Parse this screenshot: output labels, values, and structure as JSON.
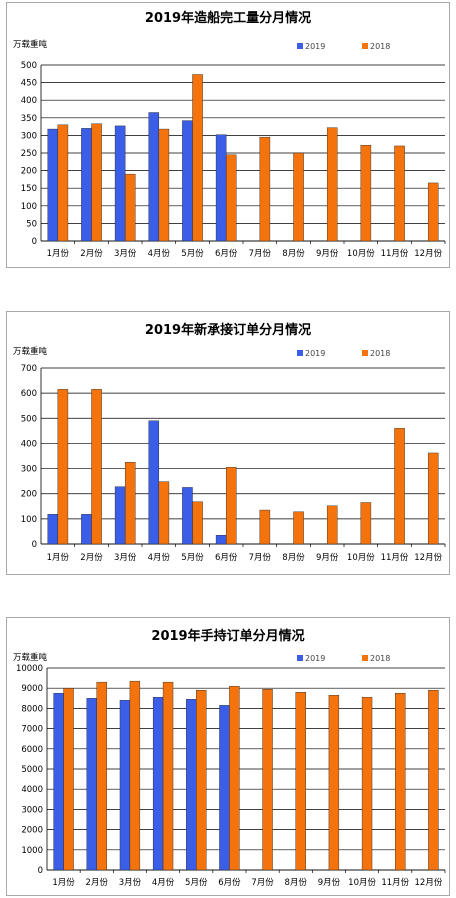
{
  "colors": {
    "s2019": "#3a5ee8",
    "s2018": "#f4730c",
    "grid": "#000000"
  },
  "chart_data": [
    {
      "type": "bar",
      "title": "2019年造船完工量分月情况",
      "ylabel": "万载重吨",
      "ylim": [
        0,
        500
      ],
      "yticks": [
        0,
        50,
        100,
        150,
        200,
        250,
        300,
        350,
        400,
        450,
        500
      ],
      "legend_position": "top-right",
      "categories": [
        "1月份",
        "2月份",
        "3月份",
        "4月份",
        "5月份",
        "6月份",
        "7月份",
        "8月份",
        "9月份",
        "10月份",
        "11月份",
        "12月份"
      ],
      "series": [
        {
          "name": "2019",
          "values": [
            318,
            320,
            327,
            365,
            342,
            302,
            null,
            null,
            null,
            null,
            null,
            null
          ]
        },
        {
          "name": "2018",
          "values": [
            330,
            333,
            190,
            318,
            473,
            245,
            295,
            250,
            322,
            272,
            270,
            165
          ]
        }
      ]
    },
    {
      "type": "bar",
      "title": "2019年新承接订单分月情况",
      "ylabel": "万载重吨",
      "ylim": [
        0,
        700
      ],
      "yticks": [
        0,
        100,
        200,
        300,
        400,
        500,
        600,
        700
      ],
      "legend_position": "top-right",
      "categories": [
        "1月份",
        "2月份",
        "3月份",
        "4月份",
        "5月份",
        "6月份",
        "7月份",
        "8月份",
        "9月份",
        "10月份",
        "11月份",
        "12月份"
      ],
      "series": [
        {
          "name": "2019",
          "values": [
            118,
            118,
            228,
            490,
            225,
            35,
            null,
            null,
            null,
            null,
            null,
            null
          ]
        },
        {
          "name": "2018",
          "values": [
            615,
            615,
            325,
            248,
            168,
            305,
            135,
            128,
            152,
            165,
            460,
            362
          ]
        }
      ]
    },
    {
      "type": "bar",
      "title": "2019年手持订单分月情况",
      "ylabel": "万载重吨",
      "ylim": [
        0,
        10000
      ],
      "yticks": [
        0,
        1000,
        2000,
        3000,
        4000,
        5000,
        6000,
        7000,
        8000,
        9000,
        10000
      ],
      "legend_position": "top-right",
      "categories": [
        "1月份",
        "2月份",
        "3月份",
        "4月份",
        "5月份",
        "6月份",
        "7月份",
        "8月份",
        "9月份",
        "10月份",
        "11月份",
        "12月份"
      ],
      "series": [
        {
          "name": "2019",
          "values": [
            8750,
            8500,
            8400,
            8550,
            8450,
            8150,
            null,
            null,
            null,
            null,
            null,
            null
          ]
        },
        {
          "name": "2018",
          "values": [
            9000,
            9300,
            9350,
            9300,
            8900,
            9100,
            8950,
            8800,
            8650,
            8550,
            8750,
            8900
          ]
        }
      ]
    }
  ]
}
